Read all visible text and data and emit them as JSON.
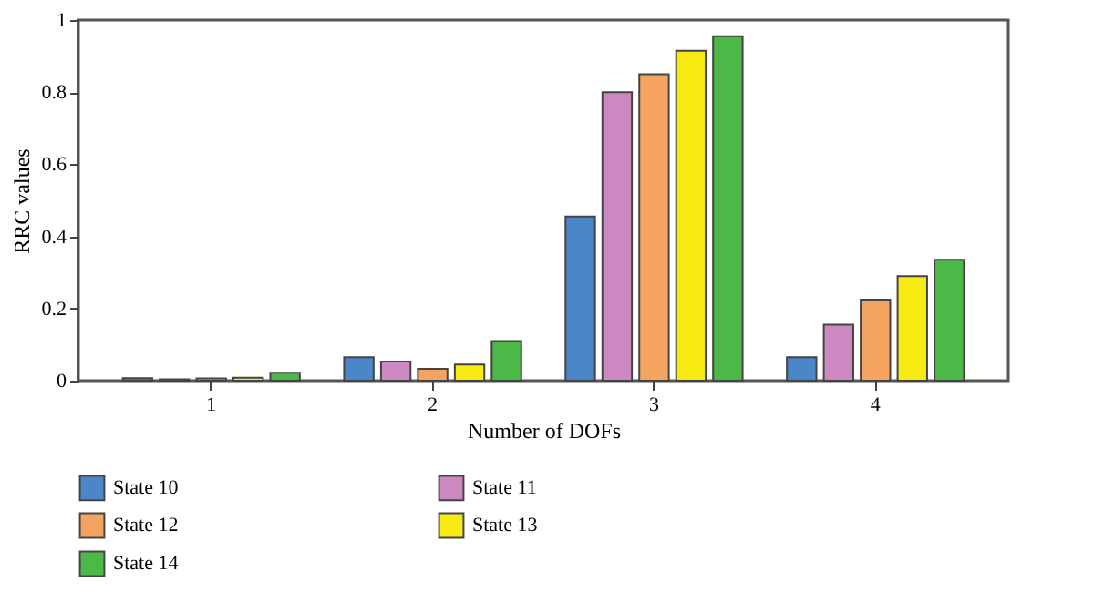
{
  "chart_data": {
    "type": "bar",
    "xlabel": "Number of DOFs",
    "ylabel": "RRC values",
    "categories": [
      "1",
      "2",
      "3",
      "4"
    ],
    "series": [
      {
        "name": "State 10",
        "color": "#4a86c8",
        "values": [
          0.007,
          0.065,
          0.455,
          0.065
        ]
      },
      {
        "name": "State 11",
        "color": "#cc88c0",
        "values": [
          0.004,
          0.053,
          0.8,
          0.155
        ]
      },
      {
        "name": "State 12",
        "color": "#f4a460",
        "values": [
          0.006,
          0.033,
          0.85,
          0.225
        ]
      },
      {
        "name": "State 13",
        "color": "#f7ea10",
        "values": [
          0.008,
          0.045,
          0.915,
          0.29
        ]
      },
      {
        "name": "State 14",
        "color": "#4cb848",
        "values": [
          0.022,
          0.11,
          0.955,
          0.335
        ]
      }
    ],
    "ylim": [
      0,
      1
    ],
    "yticks": [
      0,
      0.2,
      0.4,
      0.6,
      0.8,
      1
    ],
    "grid": false,
    "legend": "bottom left"
  }
}
